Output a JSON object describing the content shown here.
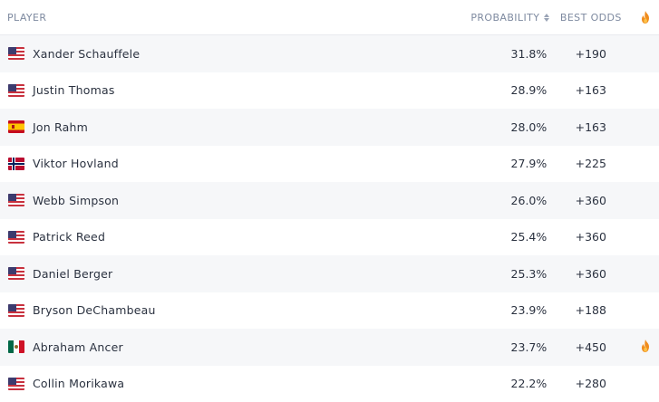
{
  "header": {
    "player": "PLAYER",
    "probability": "PROBABILITY",
    "best_odds": "BEST ODDS",
    "hot_icon": "fire-icon"
  },
  "rows": [
    {
      "flag": "us",
      "name": "Xander Schauffele",
      "probability": "31.8%",
      "odds": "+190",
      "hot": false
    },
    {
      "flag": "us",
      "name": "Justin Thomas",
      "probability": "28.9%",
      "odds": "+163",
      "hot": false
    },
    {
      "flag": "es",
      "name": "Jon Rahm",
      "probability": "28.0%",
      "odds": "+163",
      "hot": false
    },
    {
      "flag": "no",
      "name": "Viktor Hovland",
      "probability": "27.9%",
      "odds": "+225",
      "hot": false
    },
    {
      "flag": "us",
      "name": "Webb Simpson",
      "probability": "26.0%",
      "odds": "+360",
      "hot": false
    },
    {
      "flag": "us",
      "name": "Patrick Reed",
      "probability": "25.4%",
      "odds": "+360",
      "hot": false
    },
    {
      "flag": "us",
      "name": "Daniel Berger",
      "probability": "25.3%",
      "odds": "+360",
      "hot": false
    },
    {
      "flag": "us",
      "name": "Bryson DeChambeau",
      "probability": "23.9%",
      "odds": "+188",
      "hot": false
    },
    {
      "flag": "mx",
      "name": "Abraham Ancer",
      "probability": "23.7%",
      "odds": "+450",
      "hot": true
    },
    {
      "flag": "us",
      "name": "Collin Morikawa",
      "probability": "22.2%",
      "odds": "+280",
      "hot": false
    }
  ],
  "colors": {
    "header_text": "#7e8aa0",
    "row_alt": "#f6f7f9",
    "fire": "#f08c1e"
  }
}
